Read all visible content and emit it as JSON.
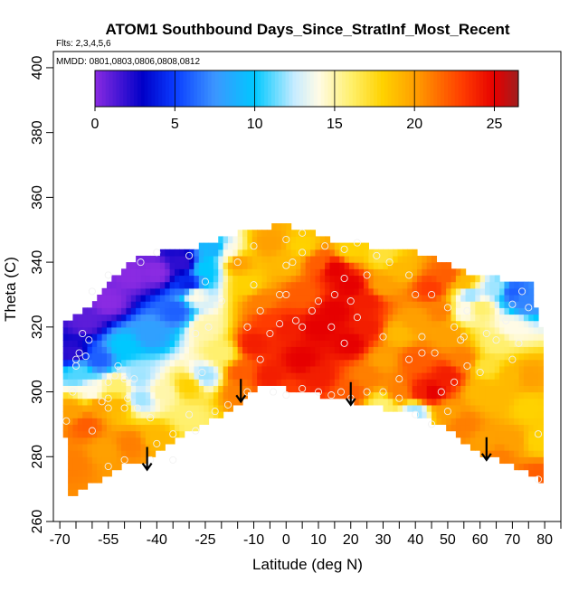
{
  "chart_data": {
    "type": "heatmap",
    "title": "ATOM1 Southbound Days_Since_StratInf_Most_Recent",
    "subtitle_flights": "Flts: 2,3,4,5,6",
    "subtitle_dates": "MMDD: 0801,0803,0806,0808,0812",
    "xlabel": "Latitude (deg N)",
    "ylabel": "Theta (C)",
    "xlim": [
      -72,
      85
    ],
    "ylim": [
      260,
      405
    ],
    "x_ticks_labeled": [
      -70,
      -55,
      -40,
      -25,
      -10,
      0,
      10,
      20,
      30,
      40,
      50,
      60,
      70,
      80
    ],
    "x_ticks_minor_step": 5,
    "y_ticks": [
      260,
      280,
      300,
      320,
      340,
      360,
      380,
      400
    ],
    "colorbar": {
      "min": 0,
      "max": 26.5,
      "ticks": [
        0,
        5,
        10,
        15,
        20,
        25
      ],
      "stops": [
        {
          "v": 0,
          "color": "#8a2be2"
        },
        {
          "v": 3,
          "color": "#0000c8"
        },
        {
          "v": 5,
          "color": "#0a3cff"
        },
        {
          "v": 7.5,
          "color": "#3c96ff"
        },
        {
          "v": 10,
          "color": "#00c8ff"
        },
        {
          "v": 12.5,
          "color": "#c8ecff"
        },
        {
          "v": 14,
          "color": "#fffbe6"
        },
        {
          "v": 16,
          "color": "#fff06e"
        },
        {
          "v": 18,
          "color": "#ffd200"
        },
        {
          "v": 20,
          "color": "#ffa000"
        },
        {
          "v": 23,
          "color": "#ff3c00"
        },
        {
          "v": 25,
          "color": "#e60000"
        },
        {
          "v": 26.5,
          "color": "#a01e1e"
        }
      ]
    },
    "domain_top_boundary": [
      [
        -69,
        320
      ],
      [
        -66,
        322
      ],
      [
        -60,
        326
      ],
      [
        -55,
        333
      ],
      [
        -50,
        338
      ],
      [
        -45,
        341
      ],
      [
        -40,
        342
      ],
      [
        -35,
        343
      ],
      [
        -28,
        344
      ],
      [
        -22,
        346
      ],
      [
        -15,
        348
      ],
      [
        -10,
        349
      ],
      [
        -5,
        350
      ],
      [
        0,
        350
      ],
      [
        5,
        349
      ],
      [
        10,
        347
      ],
      [
        15,
        345
      ],
      [
        20,
        345
      ],
      [
        25,
        344
      ],
      [
        30,
        343
      ],
      [
        35,
        343
      ],
      [
        40,
        342
      ],
      [
        45,
        340
      ],
      [
        50,
        338
      ],
      [
        55,
        336
      ],
      [
        60,
        335
      ],
      [
        65,
        334
      ],
      [
        70,
        333
      ],
      [
        75,
        332
      ],
      [
        78,
        318
      ],
      [
        79,
        300
      ]
    ],
    "domain_bottom_boundary": [
      [
        79,
        286
      ],
      [
        78,
        272
      ],
      [
        72,
        275
      ],
      [
        65,
        278
      ],
      [
        60,
        280
      ],
      [
        55,
        283
      ],
      [
        50,
        287
      ],
      [
        45,
        290
      ],
      [
        40,
        292
      ],
      [
        35,
        293
      ],
      [
        30,
        294
      ],
      [
        25,
        295
      ],
      [
        20,
        296
      ],
      [
        15,
        297
      ],
      [
        10,
        298
      ],
      [
        5,
        299
      ],
      [
        0,
        300
      ],
      [
        -5,
        301
      ],
      [
        -10,
        300
      ],
      [
        -15,
        296
      ],
      [
        -20,
        292
      ],
      [
        -25,
        290
      ],
      [
        -30,
        287
      ],
      [
        -35,
        284
      ],
      [
        -40,
        281
      ],
      [
        -45,
        278
      ],
      [
        -50,
        277
      ],
      [
        -55,
        274
      ],
      [
        -60,
        271
      ],
      [
        -65,
        268
      ],
      [
        -67,
        266
      ],
      [
        -68,
        268
      ],
      [
        -69,
        285
      ]
    ],
    "anchors": [
      [
        -66,
        312,
        2
      ],
      [
        -62,
        322,
        1
      ],
      [
        -55,
        328,
        0
      ],
      [
        -48,
        336,
        0
      ],
      [
        -40,
        337,
        0
      ],
      [
        -32,
        340,
        2
      ],
      [
        -30,
        333,
        4
      ],
      [
        -34,
        325,
        6
      ],
      [
        -42,
        318,
        8
      ],
      [
        -50,
        314,
        10
      ],
      [
        -58,
        310,
        6
      ],
      [
        -64,
        306,
        11
      ],
      [
        -60,
        300,
        14
      ],
      [
        -52,
        296,
        19
      ],
      [
        -45,
        298,
        12
      ],
      [
        -38,
        300,
        15
      ],
      [
        -30,
        302,
        18
      ],
      [
        -25,
        305,
        12
      ],
      [
        -20,
        312,
        16
      ],
      [
        -25,
        320,
        15
      ],
      [
        -28,
        330,
        14
      ],
      [
        -25,
        338,
        10
      ],
      [
        -22,
        344,
        9
      ],
      [
        -18,
        343,
        14
      ],
      [
        -15,
        340,
        20
      ],
      [
        -12,
        333,
        18
      ],
      [
        -8,
        328,
        21
      ],
      [
        -5,
        322,
        23
      ],
      [
        -10,
        315,
        24
      ],
      [
        -14,
        306,
        22
      ],
      [
        -15,
        300,
        21
      ],
      [
        -62,
        290,
        22
      ],
      [
        -56,
        282,
        20
      ],
      [
        -48,
        284,
        21
      ],
      [
        -40,
        286,
        19
      ],
      [
        -30,
        292,
        16
      ],
      [
        -66,
        278,
        21
      ],
      [
        -66,
        294,
        20
      ],
      [
        -58,
        296,
        20
      ],
      [
        -5,
        305,
        24
      ],
      [
        0,
        300,
        23
      ],
      [
        5,
        310,
        25
      ],
      [
        0,
        320,
        24
      ],
      [
        5,
        330,
        22
      ],
      [
        0,
        340,
        19
      ],
      [
        5,
        345,
        18
      ],
      [
        -5,
        346,
        20
      ],
      [
        10,
        340,
        22
      ],
      [
        15,
        338,
        25
      ],
      [
        20,
        333,
        25
      ],
      [
        25,
        328,
        24
      ],
      [
        30,
        333,
        20
      ],
      [
        35,
        338,
        19
      ],
      [
        30,
        342,
        17
      ],
      [
        20,
        344,
        18
      ],
      [
        15,
        325,
        25
      ],
      [
        20,
        315,
        25
      ],
      [
        25,
        320,
        24
      ],
      [
        10,
        320,
        25
      ],
      [
        10,
        305,
        24
      ],
      [
        20,
        300,
        22
      ],
      [
        25,
        305,
        21
      ],
      [
        30,
        310,
        20
      ],
      [
        35,
        318,
        19
      ],
      [
        40,
        322,
        20
      ],
      [
        40,
        310,
        22
      ],
      [
        42,
        300,
        24
      ],
      [
        35,
        300,
        21
      ],
      [
        30,
        296,
        16
      ],
      [
        40,
        294,
        12
      ],
      [
        45,
        300,
        25
      ],
      [
        50,
        305,
        24
      ],
      [
        55,
        310,
        21
      ],
      [
        50,
        318,
        20
      ],
      [
        48,
        325,
        21
      ],
      [
        45,
        332,
        23
      ],
      [
        50,
        336,
        22
      ],
      [
        55,
        334,
        19
      ],
      [
        60,
        326,
        16
      ],
      [
        65,
        332,
        12
      ],
      [
        70,
        331,
        6
      ],
      [
        74,
        328,
        7
      ],
      [
        70,
        320,
        14
      ],
      [
        65,
        315,
        16
      ],
      [
        62,
        308,
        17
      ],
      [
        60,
        300,
        19
      ],
      [
        65,
        298,
        19
      ],
      [
        70,
        305,
        19
      ],
      [
        75,
        305,
        20
      ],
      [
        75,
        295,
        18
      ],
      [
        70,
        285,
        20
      ],
      [
        62,
        285,
        20
      ],
      [
        55,
        290,
        21
      ],
      [
        50,
        294,
        20
      ],
      [
        78,
        285,
        18
      ],
      [
        78,
        274,
        22
      ],
      [
        66,
        280,
        21
      ],
      [
        57,
        330,
        12
      ],
      [
        55,
        325,
        14
      ],
      [
        -46,
        305,
        12
      ],
      [
        -52,
        302,
        16
      ]
    ],
    "observation_points": [
      [
        -68,
        291
      ],
      [
        -66,
        300
      ],
      [
        -65,
        308
      ],
      [
        -64,
        312
      ],
      [
        -63,
        318
      ],
      [
        -61,
        316
      ],
      [
        -55,
        303
      ],
      [
        -53,
        305
      ],
      [
        -50,
        304
      ],
      [
        -49,
        298
      ],
      [
        -55,
        298
      ],
      [
        -57,
        297
      ],
      [
        -55,
        295
      ],
      [
        -50,
        295
      ],
      [
        -46,
        295
      ],
      [
        -42,
        292
      ],
      [
        -40,
        284
      ],
      [
        -35,
        287
      ],
      [
        -30,
        293
      ],
      [
        -26,
        306
      ],
      [
        -24,
        320
      ],
      [
        -12,
        320
      ],
      [
        -10,
        333
      ],
      [
        -8,
        325
      ],
      [
        -5,
        318
      ],
      [
        0,
        330
      ],
      [
        -2,
        330
      ],
      [
        3,
        322
      ],
      [
        5,
        320
      ],
      [
        8,
        325
      ],
      [
        10,
        328
      ],
      [
        15,
        330
      ],
      [
        18,
        335
      ],
      [
        20,
        328
      ],
      [
        22,
        323
      ],
      [
        18,
        315
      ],
      [
        14,
        320
      ],
      [
        2,
        340
      ],
      [
        0,
        347
      ],
      [
        5,
        343
      ],
      [
        12,
        345
      ],
      [
        18,
        344
      ],
      [
        22,
        346
      ],
      [
        28,
        342
      ],
      [
        32,
        340
      ],
      [
        38,
        336
      ],
      [
        40,
        330
      ],
      [
        45,
        330
      ],
      [
        50,
        326
      ],
      [
        52,
        320
      ],
      [
        54,
        316
      ],
      [
        55,
        317
      ],
      [
        56,
        325
      ],
      [
        62,
        318
      ],
      [
        68,
        322
      ],
      [
        70,
        327
      ],
      [
        73,
        331
      ],
      [
        75,
        326
      ],
      [
        72,
        315
      ],
      [
        70,
        310
      ],
      [
        65,
        316
      ],
      [
        60,
        306
      ],
      [
        56,
        308
      ],
      [
        52,
        303
      ],
      [
        48,
        300
      ],
      [
        46,
        312
      ],
      [
        42,
        312
      ],
      [
        38,
        310
      ],
      [
        35,
        304
      ],
      [
        30,
        300
      ],
      [
        25,
        300
      ],
      [
        20,
        298
      ],
      [
        17,
        300
      ],
      [
        14,
        299
      ],
      [
        10,
        300
      ],
      [
        5,
        301
      ],
      [
        0,
        299
      ],
      [
        -4,
        300
      ],
      [
        -12,
        300
      ],
      [
        -18,
        296
      ],
      [
        -22,
        294
      ],
      [
        -28,
        288
      ],
      [
        -35,
        279
      ],
      [
        -42,
        279
      ],
      [
        -55,
        277
      ],
      [
        -50,
        279
      ],
      [
        -60,
        288
      ],
      [
        -40,
        343
      ],
      [
        -30,
        342
      ],
      [
        -25,
        334
      ],
      [
        -28,
        318
      ],
      [
        -52,
        308
      ],
      [
        -47,
        304
      ],
      [
        40,
        293
      ],
      [
        50,
        294
      ],
      [
        45,
        290
      ],
      [
        35,
        298
      ],
      [
        78,
        287
      ],
      [
        78,
        273
      ],
      [
        -45,
        340
      ],
      [
        -55,
        336
      ],
      [
        -60,
        331
      ],
      [
        -62,
        311
      ],
      [
        -65,
        310
      ],
      [
        -20,
        328
      ],
      [
        -2,
        321
      ],
      [
        42,
        317
      ],
      [
        -15,
        340
      ],
      [
        -10,
        345
      ],
      [
        25,
        336
      ],
      [
        30,
        317
      ],
      [
        -8,
        310
      ],
      [
        0,
        339
      ],
      [
        5,
        349
      ]
    ],
    "arrows": [
      {
        "x": -43,
        "y_tail": 283,
        "y_head": 276
      },
      {
        "x": -14,
        "y_tail": 304,
        "y_head": 297
      },
      {
        "x": 20,
        "y_tail": 303,
        "y_head": 296
      },
      {
        "x": 62,
        "y_tail": 286,
        "y_head": 279
      }
    ]
  }
}
